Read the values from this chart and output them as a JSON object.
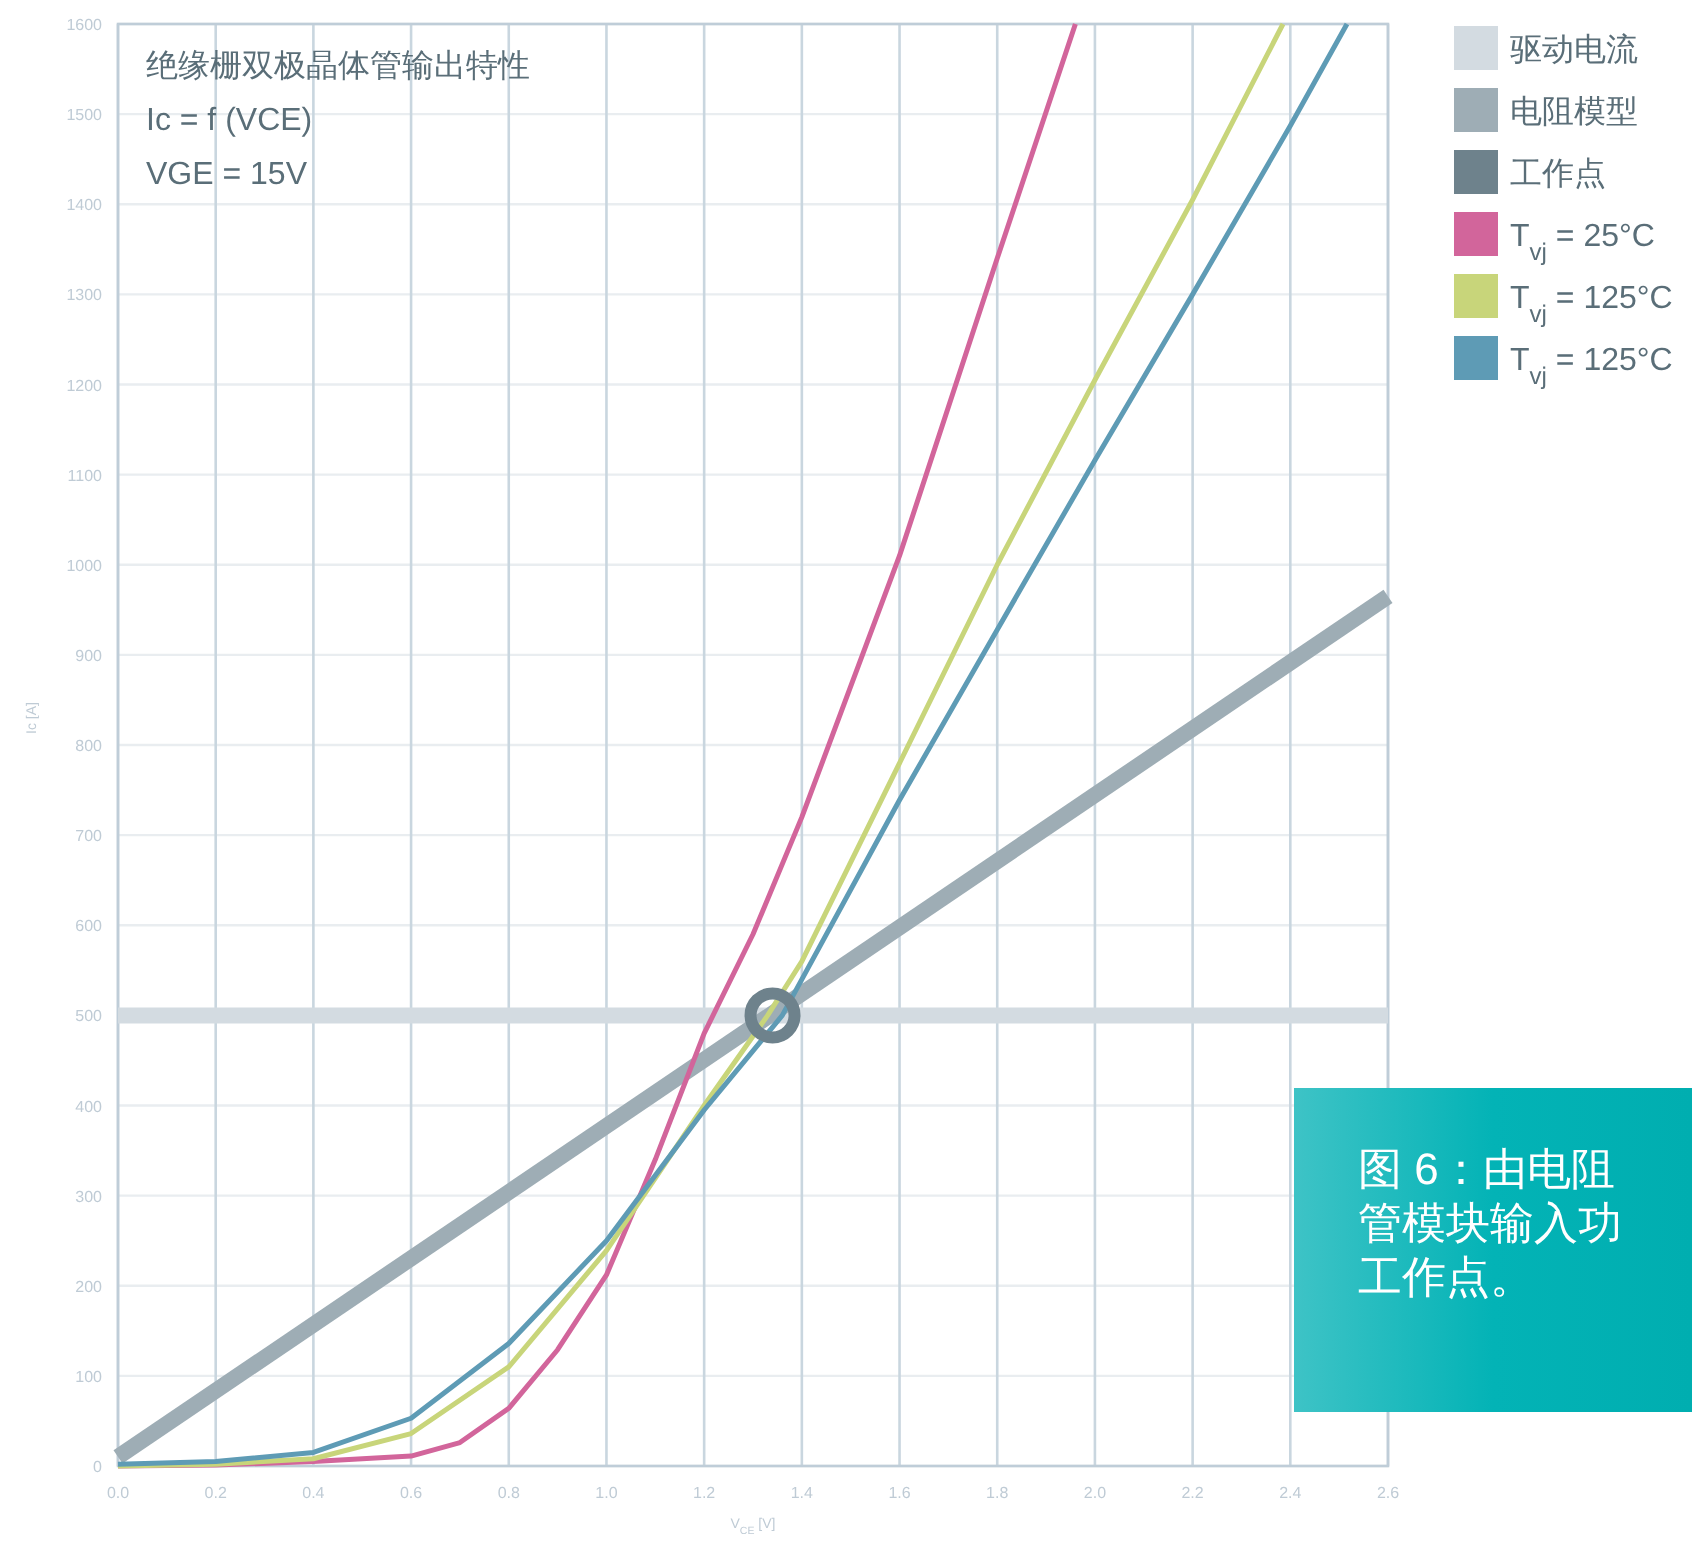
{
  "chart_data": {
    "type": "line",
    "title": "绝缘栅双极晶体管输出特性",
    "subtitle": "Ic = f (VCE)",
    "annotations": [
      "VGE = 15V",
      "图 6：由电阻",
      "管模块输入功",
      "工作点。"
    ],
    "xlabel": "V$_{CE}$ [V]",
    "ylabel": "Ic [A]",
    "xlim": [
      0,
      2.6
    ],
    "ylim": [
      0,
      1600
    ],
    "xticks": [
      {
        "value": 0,
        "label": "0.0"
      },
      0.2,
      0.4,
      0.6,
      0.8,
      {
        "value": 1,
        "label": "1.0"
      },
      1.2,
      1.4,
      1.6,
      1.8,
      {
        "value": 2,
        "label": "2.0"
      },
      2.2,
      2.4,
      2.6
    ],
    "yticks": [
      0,
      100,
      200,
      300,
      400,
      500,
      600,
      700,
      800,
      900,
      1000,
      1100,
      1200,
      1300,
      1400,
      1500,
      1600
    ],
    "grid": true,
    "legend": "right",
    "line_style": "solid",
    "ref_lines": [
      {
        "axis": "y",
        "value": 500,
        "label": "驱动电流",
        "color": "#d3dbe1"
      }
    ],
    "series": [
      {
        "name": "电阻模型",
        "color": "#9eadb5",
        "x": [
          0,
          2.6
        ],
        "values": [
          10,
          965
        ]
      },
      {
        "name": "工作点",
        "type": "scatter",
        "marker": "circle",
        "color": "#6e828c",
        "x": [
          1.34
        ],
        "values": [
          500
        ]
      },
      {
        "name": "T$_{vj}$ = 25°C",
        "color": "#d2659b",
        "x": [
          0,
          0.2,
          0.4,
          0.6,
          0.7,
          0.8,
          0.9,
          1.0,
          1.1,
          1.2,
          1.3,
          1.4,
          1.6,
          1.8,
          1.96
        ],
        "values": [
          0,
          1,
          5,
          11,
          26,
          64,
          129,
          212,
          340,
          480,
          590,
          720,
          1010,
          1340,
          1600
        ]
      },
      {
        "name": "T$_{vj}$ = 125°C",
        "color": "#c8d57a",
        "x": [
          0,
          0.2,
          0.4,
          0.6,
          0.8,
          1.0,
          1.2,
          1.33,
          1.4,
          1.6,
          1.8,
          2.0,
          2.2,
          2.385
        ],
        "values": [
          0,
          2,
          8,
          36,
          110,
          239,
          400,
          500,
          560,
          780,
          1000,
          1205,
          1405,
          1600
        ]
      },
      {
        "name": "T$_{vj}$ = 125°C",
        "color": "#5e9bb5",
        "x": [
          0,
          0.2,
          0.4,
          0.6,
          0.8,
          1.0,
          1.2,
          1.36,
          1.4,
          1.6,
          1.8,
          2.0,
          2.2,
          2.4,
          2.516
        ],
        "values": [
          2,
          5,
          15,
          53,
          136,
          250,
          395,
          500,
          540,
          739,
          928,
          1116,
          1300,
          1487,
          1600
        ]
      }
    ]
  }
}
